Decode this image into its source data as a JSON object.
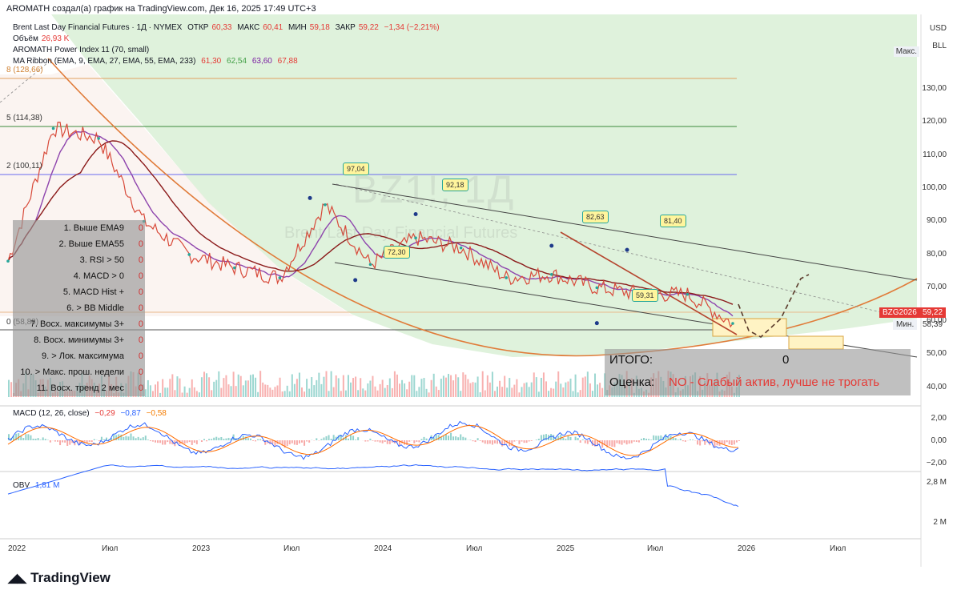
{
  "header": {
    "author_line": "AROMATH создал(а) график на TradingView.com, Дек 16, 2025 17:49 UTC+3"
  },
  "symbol": {
    "name": "Brent Last Day Financial Futures · 1Д · NYMEX",
    "open_label": "ОТКР",
    "open": "60,33",
    "high_label": "МАКС",
    "high": "60,41",
    "low_label": "МИН",
    "low": "59,18",
    "close_label": "ЗАКР",
    "close": "59,22",
    "change": "−1,34 (−2,21%)"
  },
  "volume": {
    "label": "Объём",
    "value": "26,93 K"
  },
  "indicators": {
    "power_index": "AROMATH Power Index 11 (70, small)",
    "ribbon_label": "MA Ribbon (EMA, 9, EMA, 27, EMA, 55, EMA, 233)",
    "ribbon_values": [
      "61,30",
      "62,54",
      "63,60",
      "67,88"
    ]
  },
  "watermark": {
    "ticker": "BZ1!, 1Д",
    "name": "Brent Last Day Financial Futures"
  },
  "criteria": [
    {
      "label": "1. Выше EMA9",
      "value": "0"
    },
    {
      "label": "2. Выше EMA55",
      "value": "0"
    },
    {
      "label": "3. RSI > 50",
      "value": "0"
    },
    {
      "label": "4. MACD > 0",
      "value": "0"
    },
    {
      "label": "5. MACD Hist +",
      "value": "0"
    },
    {
      "label": "6. > BB Middle",
      "value": "0"
    },
    {
      "label": "7. Восх. максимумы 3+",
      "value": "0"
    },
    {
      "label": "8. Восх. минимумы 3+",
      "value": "0"
    },
    {
      "label": "9. > Лок. максимума",
      "value": "0"
    },
    {
      "label": "10. > Макс. прош. недели",
      "value": "0"
    },
    {
      "label": "11. Восх. тренд 2 мес",
      "value": "0"
    }
  ],
  "summary": {
    "total_label": "ИТОГО:",
    "total_value": "0",
    "eval_label": "Оценка:",
    "eval_value": "NO - Слабый актив, лучше не трогать"
  },
  "fib_labels": [
    "8 (128,66)",
    "5 (114,38)",
    "2 (100,11)",
    "0 (58,88)"
  ],
  "price_axis": {
    "currency": "USD",
    "unit": "BLL",
    "max_label": "Макс.",
    "min_label": "Мин.",
    "min_value": "58,39",
    "ticks": [
      "130,00",
      "120,00",
      "110,00",
      "100,00",
      "90,00",
      "80,00",
      "70,00",
      "60,00",
      "50,00",
      "40,00"
    ]
  },
  "price_tag": {
    "symbol": "BZG2026",
    "value": "59,22"
  },
  "macd": {
    "label": "MACD (12, 26, close)",
    "v1": "−0,29",
    "v2": "−0,87",
    "v3": "−0,58",
    "ticks": [
      "2,00",
      "0,00",
      "−2,00"
    ]
  },
  "obv": {
    "label": "OBV",
    "value": "1,81 M",
    "ticks": [
      "2,8 M",
      "2 M"
    ]
  },
  "time_axis": [
    "2022",
    "Июл",
    "2023",
    "Июл",
    "2024",
    "Июл",
    "2025",
    "Июл",
    "2026",
    "Июл"
  ],
  "brand": "TradingView",
  "chart_data": {
    "type": "line",
    "title": "Brent Last Day Financial Futures · 1Д · NYMEX",
    "ylim": [
      38,
      135
    ],
    "x": [
      "2022-01",
      "2022-03",
      "2022-06",
      "2022-09",
      "2022-12",
      "2023-03",
      "2023-06",
      "2023-09",
      "2023-12",
      "2024-03",
      "2024-06",
      "2024-09",
      "2024-12",
      "2025-03",
      "2025-06",
      "2025-09",
      "2025-12"
    ],
    "series": [
      {
        "name": "BZ1!",
        "values": [
          78,
          118,
          115,
          90,
          80,
          76,
          73,
          95,
          77,
          85,
          82,
          73,
          74,
          70,
          68,
          68,
          59.22
        ]
      }
    ],
    "annotations": [
      {
        "date": "2023-09",
        "value": 97.04,
        "label": "97,04"
      },
      {
        "date": "2023-12",
        "value": 72.3,
        "label": "72,30"
      },
      {
        "date": "2024-04",
        "value": 92.18,
        "label": "92,18"
      },
      {
        "date": "2025-01",
        "value": 82.63,
        "label": "82,63"
      },
      {
        "date": "2025-04",
        "value": 59.31,
        "label": "59,31"
      },
      {
        "date": "2025-06",
        "value": 81.4,
        "label": "81,40"
      }
    ]
  },
  "colors": {
    "up": "#26a69a",
    "down": "#ef5350",
    "zone": "#c8e6c9",
    "curve": "#e07b39",
    "macd": "#2962ff",
    "signal": "#ff6d00",
    "obv": "#2962ff"
  }
}
